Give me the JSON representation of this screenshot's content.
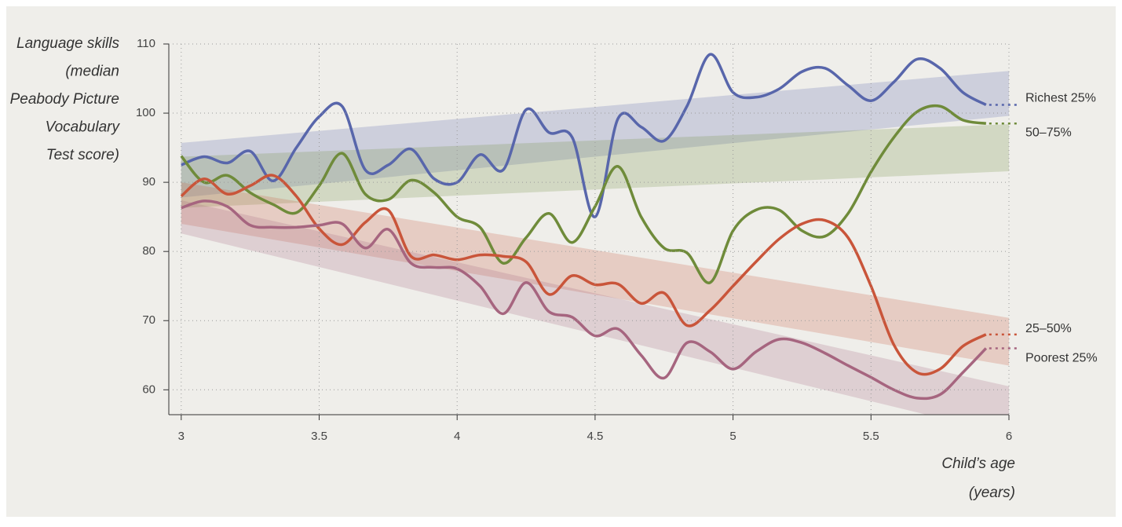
{
  "chart_data": {
    "type": "line",
    "ylabel": [
      "Language skills",
      "(median",
      "Peabody Picture",
      "Vocabulary",
      "Test score)"
    ],
    "xlabel": [
      "Child’s age",
      "(years)"
    ],
    "xlim": [
      2.955,
      6
    ],
    "ylim": [
      56.4,
      110
    ],
    "xticks": [
      3,
      3.5,
      4,
      4.5,
      5,
      5.5,
      6
    ],
    "yticks": [
      60,
      70,
      80,
      90,
      100,
      110
    ],
    "grid": true,
    "band_x": [
      3,
      6
    ],
    "x": [
      3,
      3.083,
      3.167,
      3.25,
      3.333,
      3.417,
      3.5,
      3.583,
      3.667,
      3.75,
      3.833,
      3.917,
      4,
      4.083,
      4.167,
      4.25,
      4.333,
      4.417,
      4.5,
      4.583,
      4.667,
      4.75,
      4.833,
      4.917,
      5,
      5.083,
      5.167,
      5.25,
      5.333,
      5.417,
      5.5,
      5.583,
      5.667,
      5.75,
      5.833,
      5.917
    ],
    "series": [
      {
        "name": "Richest 25%",
        "color": "#5866ab",
        "values": [
          92.5,
          93.7,
          92.8,
          94.5,
          90.2,
          95,
          99.5,
          101,
          91.8,
          92.5,
          94.8,
          90.5,
          90,
          94,
          91.8,
          100.5,
          97.2,
          96.5,
          85,
          99.2,
          98,
          96,
          101,
          108.5,
          103,
          102.3,
          103.5,
          106,
          106.5,
          104,
          101.8,
          104.5,
          107.8,
          106.5,
          103,
          101.2
        ],
        "band": {
          "lower": [
            87.8,
            99.6
          ],
          "upper": [
            95.7,
            106.1
          ]
        }
      },
      {
        "name": "50–75%",
        "color": "#6f8b3a",
        "values": [
          93.8,
          90,
          91,
          88.5,
          86.8,
          85.6,
          89.5,
          94.2,
          88.3,
          87.5,
          90.3,
          88.5,
          85,
          83.5,
          78.3,
          82,
          85.5,
          81.3,
          86.5,
          92.3,
          85,
          80.5,
          79.8,
          75.5,
          83,
          86,
          86,
          83,
          82.2,
          85.5,
          91.5,
          96.5,
          100.2,
          101,
          99,
          98.5
        ],
        "band": {
          "lower": [
            86.3,
            91.6
          ],
          "upper": [
            93.7,
            98.4
          ]
        }
      },
      {
        "name": "25–50%",
        "color": "#c9553a",
        "values": [
          88,
          90.5,
          88.3,
          89.5,
          91,
          88,
          83.3,
          81,
          84.2,
          86,
          79.3,
          79.5,
          78.8,
          79.5,
          79.3,
          78.5,
          73.8,
          76.5,
          75.2,
          75.3,
          72.5,
          74,
          69.3,
          71.5,
          75,
          78.5,
          81.8,
          84,
          84.5,
          82,
          75,
          66.5,
          62.5,
          63,
          66.3,
          68
        ],
        "band": {
          "lower": [
            84,
            63.5
          ],
          "upper": [
            90,
            70.4
          ]
        }
      },
      {
        "name": "Poorest 25%",
        "color": "#a6657f",
        "values": [
          86.3,
          87.3,
          86.5,
          83.8,
          83.5,
          83.5,
          83.8,
          84,
          80.5,
          83.2,
          78.3,
          77.7,
          77.5,
          75,
          71,
          75.5,
          71.3,
          70.5,
          67.8,
          68.8,
          65,
          61.7,
          66.8,
          65.5,
          63,
          65.5,
          67.3,
          66.8,
          65.3,
          63.5,
          61.8,
          60,
          58.8,
          59.3,
          62.5,
          66
        ],
        "band": {
          "lower": [
            82.6,
            53.5
          ],
          "upper": [
            87.4,
            60.5
          ]
        }
      }
    ]
  }
}
